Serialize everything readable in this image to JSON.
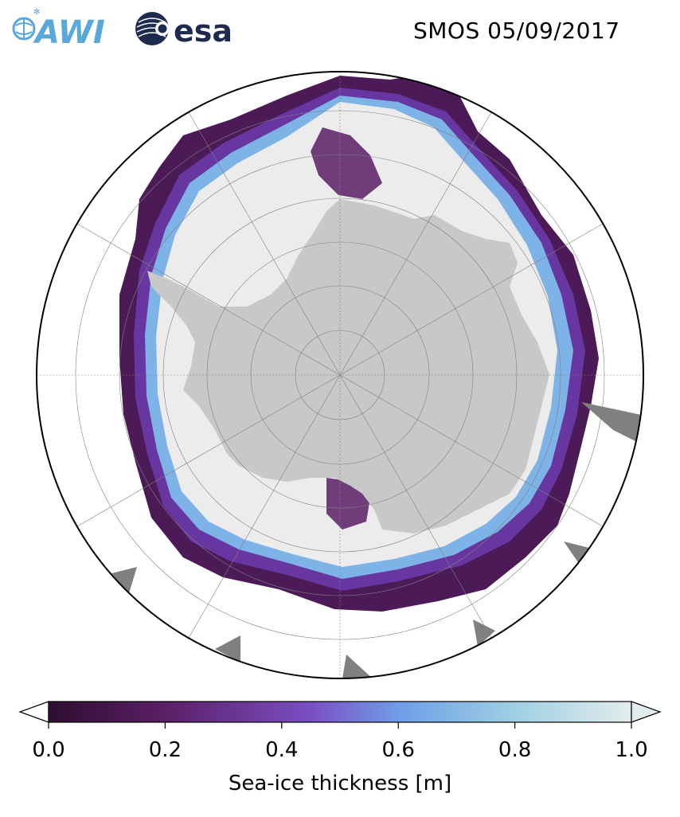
{
  "header": {
    "logo_awi": "AWI",
    "logo_esa": "esa",
    "title": "SMOS 05/09/2017"
  },
  "map": {
    "projection": "south-polar-stereographic",
    "colors": {
      "land": "#c8c8c8",
      "thick_ice": "#ececec",
      "no_data": "#808080",
      "ocean": "#ffffff",
      "gridline": "#808080"
    }
  },
  "colorbar": {
    "label": "Sea-ice thickness [m]",
    "ticks": [
      "0.0",
      "0.2",
      "0.4",
      "0.6",
      "0.8",
      "1.0"
    ],
    "range": [
      0.0,
      1.0
    ],
    "extend": "both",
    "stops": [
      "#2d0e30",
      "#5b1f66",
      "#7a4fc4",
      "#6f9de8",
      "#9fd0e3",
      "#e3ecec"
    ]
  }
}
